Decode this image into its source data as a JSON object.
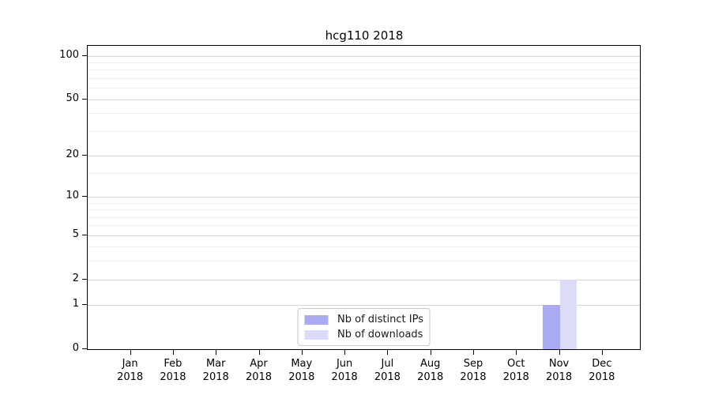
{
  "chart_data": {
    "type": "bar",
    "title": "hcg110 2018",
    "categories": [
      "Jan 2018",
      "Feb 2018",
      "Mar 2018",
      "Apr 2018",
      "May 2018",
      "Jun 2018",
      "Jul 2018",
      "Aug 2018",
      "Sep 2018",
      "Oct 2018",
      "Nov 2018",
      "Dec 2018"
    ],
    "series": [
      {
        "name": "Nb of distinct IPs",
        "color": "#aaaaf0",
        "values": [
          0,
          0,
          0,
          0,
          0,
          0,
          0,
          0,
          0,
          0,
          1,
          0
        ]
      },
      {
        "name": "Nb of downloads",
        "color": "#dcdcf8",
        "values": [
          0,
          0,
          0,
          0,
          0,
          0,
          0,
          0,
          0,
          0,
          2,
          0
        ]
      }
    ],
    "xlabel": "",
    "ylabel": "",
    "yscale": "log1p",
    "ylim": [
      0,
      117
    ],
    "y_major_ticks": [
      0,
      1,
      2,
      5,
      10,
      20,
      50,
      100
    ],
    "y_minor_ticks": [
      3,
      4,
      6,
      7,
      8,
      9,
      15,
      30,
      40,
      60,
      70,
      80,
      90
    ],
    "grid": "horizontal",
    "legend_position": "lower center"
  }
}
